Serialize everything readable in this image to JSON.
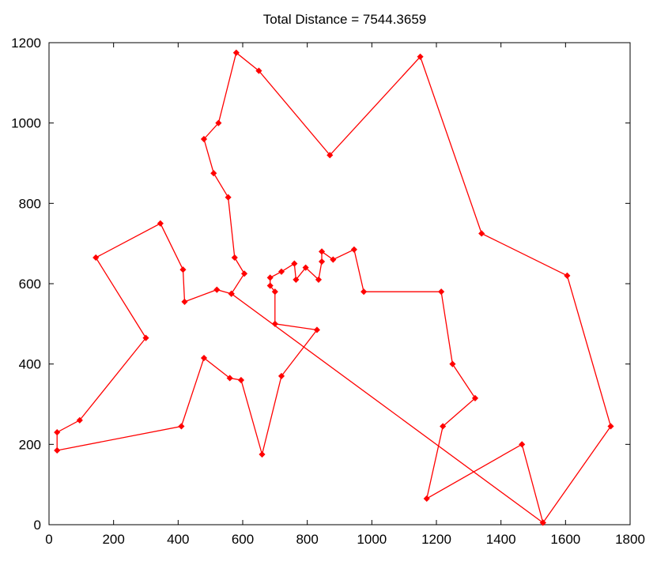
{
  "chart_data": {
    "type": "line",
    "title": "Total Distance = 7544.3659",
    "xlabel": "",
    "ylabel": "",
    "xlim": [
      0,
      1800
    ],
    "ylim": [
      0,
      1200
    ],
    "xticks": [
      0,
      200,
      400,
      600,
      800,
      1000,
      1200,
      1400,
      1600,
      1800
    ],
    "yticks": [
      0,
      200,
      400,
      600,
      800,
      1000,
      1200
    ],
    "grid": false,
    "legend": "none",
    "color": "#ff0000",
    "marker": "diamond",
    "series": [
      {
        "x": [
          565,
          1530,
          1740,
          1605,
          1340,
          1150,
          870,
          650,
          580,
          525,
          480,
          510,
          555,
          575,
          605,
          565,
          520,
          420,
          415,
          345,
          145,
          300,
          95,
          25,
          25,
          410,
          480,
          560,
          595,
          660,
          720,
          830,
          700,
          700,
          685,
          685,
          720,
          760,
          765,
          795,
          835,
          845,
          845,
          880,
          945,
          975,
          1215,
          1250,
          1320,
          1220,
          1170,
          1465,
          1530
        ],
        "y": [
          575,
          5,
          245,
          620,
          725,
          1165,
          920,
          1130,
          1175,
          1000,
          960,
          875,
          815,
          665,
          625,
          575,
          585,
          555,
          635,
          750,
          665,
          465,
          260,
          230,
          185,
          245,
          415,
          365,
          360,
          175,
          370,
          485,
          500,
          580,
          595,
          615,
          630,
          650,
          610,
          640,
          610,
          655,
          680,
          660,
          685,
          580,
          580,
          400,
          315,
          245,
          65,
          200,
          5
        ]
      }
    ]
  }
}
